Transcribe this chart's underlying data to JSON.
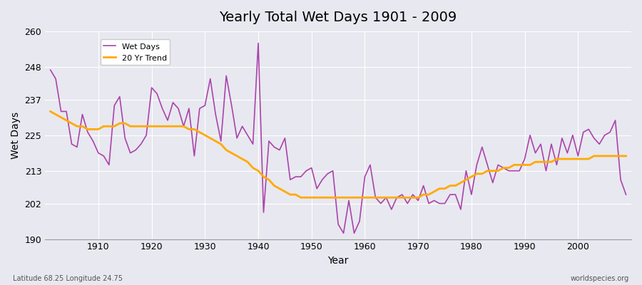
{
  "title": "Yearly Total Wet Days 1901 - 2009",
  "xlabel": "Year",
  "ylabel": "Wet Days",
  "bottom_left_text": "Latitude 68.25 Longitude 24.75",
  "bottom_right_text": "worldspecies.org",
  "legend_labels": [
    "Wet Days",
    "20 Yr Trend"
  ],
  "wet_days_color": "#aa44aa",
  "trend_color": "#ffaa00",
  "background_color": "#e8e8f0",
  "plot_bg_color": "#e8e8f0",
  "ylim": [
    190,
    260
  ],
  "yticks": [
    190,
    202,
    213,
    225,
    237,
    248,
    260
  ],
  "years": [
    1901,
    1902,
    1903,
    1904,
    1905,
    1906,
    1907,
    1908,
    1909,
    1910,
    1911,
    1912,
    1913,
    1914,
    1915,
    1916,
    1917,
    1918,
    1919,
    1920,
    1921,
    1922,
    1923,
    1924,
    1925,
    1926,
    1927,
    1928,
    1929,
    1930,
    1931,
    1932,
    1933,
    1934,
    1935,
    1936,
    1937,
    1938,
    1939,
    1940,
    1941,
    1942,
    1943,
    1944,
    1945,
    1946,
    1947,
    1948,
    1949,
    1950,
    1951,
    1952,
    1953,
    1954,
    1955,
    1956,
    1957,
    1958,
    1959,
    1960,
    1961,
    1962,
    1963,
    1964,
    1965,
    1966,
    1967,
    1968,
    1969,
    1970,
    1971,
    1972,
    1973,
    1974,
    1975,
    1976,
    1977,
    1978,
    1979,
    1980,
    1981,
    1982,
    1983,
    1984,
    1985,
    1986,
    1987,
    1988,
    1989,
    1990,
    1991,
    1992,
    1993,
    1994,
    1995,
    1996,
    1997,
    1998,
    1999,
    2000,
    2001,
    2002,
    2003,
    2004,
    2005,
    2006,
    2007,
    2008,
    2009
  ],
  "wet_days": [
    247,
    244,
    233,
    233,
    222,
    221,
    232,
    226,
    223,
    219,
    218,
    215,
    235,
    238,
    224,
    219,
    220,
    222,
    225,
    241,
    239,
    234,
    230,
    236,
    234,
    228,
    234,
    218,
    234,
    235,
    244,
    232,
    223,
    245,
    235,
    224,
    228,
    225,
    222,
    256,
    199,
    223,
    221,
    220,
    224,
    210,
    211,
    211,
    213,
    214,
    207,
    210,
    212,
    213,
    195,
    192,
    203,
    192,
    196,
    211,
    215,
    204,
    202,
    204,
    200,
    204,
    205,
    202,
    205,
    203,
    208,
    202,
    203,
    202,
    202,
    205,
    205,
    200,
    213,
    205,
    215,
    221,
    215,
    209,
    215,
    214,
    213,
    213,
    213,
    217,
    225,
    219,
    222,
    213,
    222,
    215,
    224,
    219,
    225,
    218,
    226,
    227,
    224,
    222,
    225,
    226,
    230,
    210,
    205
  ],
  "trend": [
    233,
    232,
    231,
    230,
    229,
    228,
    228,
    227,
    227,
    227,
    228,
    228,
    228,
    229,
    229,
    228,
    228,
    228,
    228,
    228,
    228,
    228,
    228,
    228,
    228,
    228,
    227,
    227,
    226,
    225,
    224,
    223,
    222,
    220,
    219,
    218,
    217,
    216,
    214,
    213,
    211,
    210,
    208,
    207,
    206,
    205,
    205,
    204,
    204,
    204,
    204,
    204,
    204,
    204,
    204,
    204,
    204,
    204,
    204,
    204,
    204,
    204,
    204,
    204,
    204,
    204,
    204,
    204,
    204,
    204,
    205,
    205,
    206,
    207,
    207,
    208,
    208,
    209,
    210,
    211,
    212,
    212,
    213,
    213,
    213,
    214,
    214,
    215,
    215,
    215,
    215,
    216,
    216,
    216,
    216,
    217,
    217,
    217,
    217,
    217,
    217,
    217,
    218,
    218,
    218,
    218,
    218,
    218,
    218
  ]
}
